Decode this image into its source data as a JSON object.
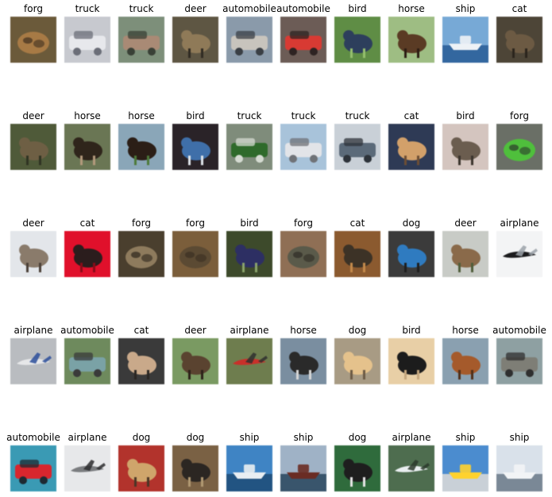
{
  "figure": {
    "rows": [
      {
        "cells": [
          {
            "label": "forg",
            "colors": {
              "bg": "#6b5a3a",
              "fg": "#a77a45",
              "accent": "#3e2f1f",
              "mode": "blob"
            }
          },
          {
            "label": "truck",
            "colors": {
              "bg": "#c7c9cf",
              "fg": "#e7e8ec",
              "accent": "#6b6e78",
              "mode": "vehicle"
            }
          },
          {
            "label": "truck",
            "colors": {
              "bg": "#7d8f7a",
              "fg": "#a98a75",
              "accent": "#394036",
              "mode": "vehicle"
            }
          },
          {
            "label": "deer",
            "colors": {
              "bg": "#5e5643",
              "fg": "#8f7a58",
              "accent": "#2f2a22",
              "mode": "animal"
            }
          },
          {
            "label": "automobile",
            "colors": {
              "bg": "#8a9aaa",
              "fg": "#c8c4bd",
              "accent": "#3a3f45",
              "mode": "vehicle"
            }
          },
          {
            "label": "automobile",
            "colors": {
              "bg": "#6c5c56",
              "fg": "#d83a33",
              "accent": "#2e2322",
              "mode": "vehicle"
            }
          },
          {
            "label": "bird",
            "colors": {
              "bg": "#5f8d45",
              "fg": "#2d3f5c",
              "accent": "#96c06e",
              "mode": "animal"
            }
          },
          {
            "label": "horse",
            "colors": {
              "bg": "#9ebd83",
              "fg": "#5a3b24",
              "accent": "#2b1c12",
              "mode": "animal"
            }
          },
          {
            "label": "ship",
            "colors": {
              "bg": "#77a9d6",
              "fg": "#eef2f6",
              "accent": "#2b5f99",
              "mode": "ship"
            }
          },
          {
            "label": "cat",
            "colors": {
              "bg": "#4d4537",
              "fg": "#6c5a43",
              "accent": "#2a241c",
              "mode": "animal"
            }
          }
        ]
      },
      {
        "cells": [
          {
            "label": "deer",
            "colors": {
              "bg": "#4f5a39",
              "fg": "#6e5f44",
              "accent": "#2f3322",
              "mode": "animal"
            }
          },
          {
            "label": "horse",
            "colors": {
              "bg": "#6a7654",
              "fg": "#2f251b",
              "accent": "#b39a7c",
              "mode": "animal"
            }
          },
          {
            "label": "horse",
            "colors": {
              "bg": "#8aa6b8",
              "fg": "#2b1e16",
              "accent": "#4d7a3a",
              "mode": "animal"
            }
          },
          {
            "label": "bird",
            "colors": {
              "bg": "#2a2328",
              "fg": "#3f6fa9",
              "accent": "#dfe5ea",
              "mode": "animal"
            }
          },
          {
            "label": "truck",
            "colors": {
              "bg": "#7f8c7b",
              "fg": "#2f6a2b",
              "accent": "#d5dbd2",
              "mode": "vehicle"
            }
          },
          {
            "label": "truck",
            "colors": {
              "bg": "#a8c3da",
              "fg": "#e2e4e8",
              "accent": "#6f7277",
              "mode": "vehicle"
            }
          },
          {
            "label": "truck",
            "colors": {
              "bg": "#c9d0d7",
              "fg": "#5b6a79",
              "accent": "#2d333a",
              "mode": "vehicle"
            }
          },
          {
            "label": "cat",
            "colors": {
              "bg": "#2e3a55",
              "fg": "#d2a06a",
              "accent": "#6d4e34",
              "mode": "animal"
            }
          },
          {
            "label": "bird",
            "colors": {
              "bg": "#d4c5bf",
              "fg": "#6b5d4f",
              "accent": "#3a332c",
              "mode": "animal"
            }
          },
          {
            "label": "forg",
            "colors": {
              "bg": "#6a6f66",
              "fg": "#4fbf3c",
              "accent": "#2c3a2b",
              "mode": "blob"
            }
          }
        ]
      },
      {
        "cells": [
          {
            "label": "deer",
            "colors": {
              "bg": "#e3e6ea",
              "fg": "#8a7b6b",
              "accent": "#4a4038",
              "mode": "animal"
            }
          },
          {
            "label": "cat",
            "colors": {
              "bg": "#e0102b",
              "fg": "#2b1d1d",
              "accent": "#8a0b18",
              "mode": "animal"
            }
          },
          {
            "label": "forg",
            "colors": {
              "bg": "#4a3f2e",
              "fg": "#8e7b5d",
              "accent": "#2d261c",
              "mode": "blob"
            }
          },
          {
            "label": "forg",
            "colors": {
              "bg": "#7b5e3b",
              "fg": "#5b4a33",
              "accent": "#3a2f22",
              "mode": "blob"
            }
          },
          {
            "label": "bird",
            "colors": {
              "bg": "#3d4a2b",
              "fg": "#2d2f63",
              "accent": "#8aa36b",
              "mode": "animal"
            }
          },
          {
            "label": "forg",
            "colors": {
              "bg": "#8f6f55",
              "fg": "#5a5a4a",
              "accent": "#2e2b25",
              "mode": "blob"
            }
          },
          {
            "label": "cat",
            "colors": {
              "bg": "#8b5a2f",
              "fg": "#3c3226",
              "accent": "#c48a4b",
              "mode": "animal"
            }
          },
          {
            "label": "dog",
            "colors": {
              "bg": "#3b3b3b",
              "fg": "#2f7bc0",
              "accent": "#1e1e1e",
              "mode": "animal"
            }
          },
          {
            "label": "deer",
            "colors": {
              "bg": "#c8cbc6",
              "fg": "#8a6a4a",
              "accent": "#4f5d3a",
              "mode": "animal"
            }
          },
          {
            "label": "airplane",
            "colors": {
              "bg": "#f3f4f5",
              "fg": "#1b1b1d",
              "accent": "#9aa1a8",
              "mode": "plane"
            }
          }
        ]
      },
      {
        "cells": [
          {
            "label": "airplane",
            "colors": {
              "bg": "#b9bcc0",
              "fg": "#e6e7e9",
              "accent": "#2a4e9a",
              "mode": "plane"
            }
          },
          {
            "label": "automobile",
            "colors": {
              "bg": "#6e8a5d",
              "fg": "#7aa2a6",
              "accent": "#3a3a3a",
              "mode": "vehicle"
            }
          },
          {
            "label": "cat",
            "colors": {
              "bg": "#3a3a3a",
              "fg": "#c9a98a",
              "accent": "#2a2622",
              "mode": "animal"
            }
          },
          {
            "label": "deer",
            "colors": {
              "bg": "#7a9a62",
              "fg": "#5a4330",
              "accent": "#2b2118",
              "mode": "animal"
            }
          },
          {
            "label": "airplane",
            "colors": {
              "bg": "#6e7d4e",
              "fg": "#c9302a",
              "accent": "#2f2f2f",
              "mode": "plane"
            }
          },
          {
            "label": "horse",
            "colors": {
              "bg": "#7a8ea0",
              "fg": "#2a2a2a",
              "accent": "#d7d7d7",
              "mode": "animal"
            }
          },
          {
            "label": "dog",
            "colors": {
              "bg": "#a89b84",
              "fg": "#e5c28c",
              "accent": "#6b5a45",
              "mode": "animal"
            }
          },
          {
            "label": "bird",
            "colors": {
              "bg": "#e8cfa6",
              "fg": "#1c1c1c",
              "accent": "#c5a77e",
              "mode": "animal"
            }
          },
          {
            "label": "horse",
            "colors": {
              "bg": "#8aa0b0",
              "fg": "#a55a2b",
              "accent": "#4f2e18",
              "mode": "animal"
            }
          },
          {
            "label": "automobile",
            "colors": {
              "bg": "#8ea0a2",
              "fg": "#7e7e76",
              "accent": "#2f2f2f",
              "mode": "vehicle"
            }
          }
        ]
      },
      {
        "cells": [
          {
            "label": "automobile",
            "colors": {
              "bg": "#3a9ab4",
              "fg": "#d8262e",
              "accent": "#1d2a32",
              "mode": "vehicle"
            }
          },
          {
            "label": "airplane",
            "colors": {
              "bg": "#e7e8ea",
              "fg": "#7b7d80",
              "accent": "#2c2c2e",
              "mode": "plane"
            }
          },
          {
            "label": "dog",
            "colors": {
              "bg": "#b2332c",
              "fg": "#cfa56b",
              "accent": "#4a3526",
              "mode": "animal"
            }
          },
          {
            "label": "dog",
            "colors": {
              "bg": "#7a6144",
              "fg": "#2b2622",
              "accent": "#b29a73",
              "mode": "animal"
            }
          },
          {
            "label": "ship",
            "colors": {
              "bg": "#3f84c4",
              "fg": "#e9eef2",
              "accent": "#1f4f7b",
              "mode": "ship"
            }
          },
          {
            "label": "ship",
            "colors": {
              "bg": "#9fb2c6",
              "fg": "#6a2c24",
              "accent": "#2e4a62",
              "mode": "ship"
            }
          },
          {
            "label": "dog",
            "colors": {
              "bg": "#2f6b3c",
              "fg": "#1e1e1e",
              "accent": "#e7e7e7",
              "mode": "animal"
            }
          },
          {
            "label": "airplane",
            "colors": {
              "bg": "#4e6d4f",
              "fg": "#e9eef0",
              "accent": "#2b3a2c",
              "mode": "plane"
            }
          },
          {
            "label": "ship",
            "colors": {
              "bg": "#4b8ccf",
              "fg": "#ffd22e",
              "accent": "#d7d7d7",
              "mode": "ship"
            }
          },
          {
            "label": "ship",
            "colors": {
              "bg": "#d9e1ea",
              "fg": "#f2f4f6",
              "accent": "#6f7e8d",
              "mode": "ship"
            }
          }
        ]
      }
    ]
  }
}
